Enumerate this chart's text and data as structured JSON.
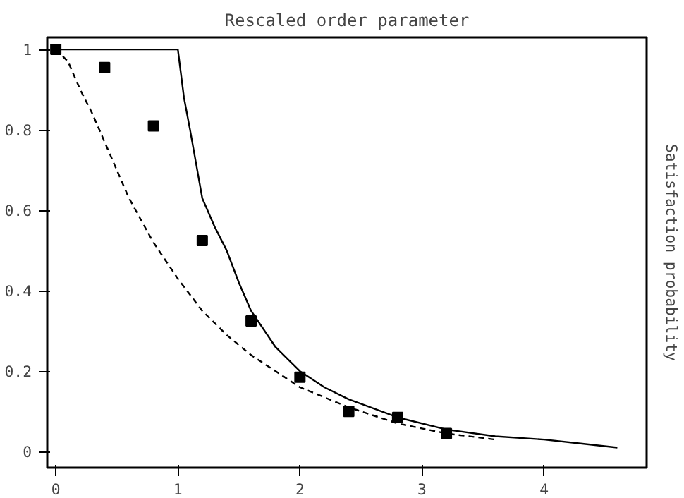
{
  "chart_data": {
    "type": "line",
    "title": "Rescaled order parameter",
    "ylabel": "Satisfaction probability",
    "xlim": [
      -0.07,
      4.84
    ],
    "ylim": [
      -0.04,
      1.03
    ],
    "xticks": [
      0,
      1,
      2,
      3,
      4
    ],
    "yticks": [
      0,
      0.2,
      0.4,
      0.6,
      0.8,
      1
    ],
    "grid": false,
    "series": [
      {
        "type": "line",
        "line_style": "solid",
        "color": "#000000",
        "x": [
          0,
          1,
          1.05,
          1.1,
          1.2,
          1.3,
          1.4,
          1.5,
          1.6,
          1.8,
          2.0,
          2.2,
          2.4,
          2.8,
          3.2,
          3.6,
          4.0,
          4.3,
          4.6
        ],
        "values": [
          1,
          1,
          0.88,
          0.8,
          0.63,
          0.56,
          0.5,
          0.42,
          0.35,
          0.26,
          0.2,
          0.16,
          0.13,
          0.085,
          0.055,
          0.038,
          0.03,
          0.02,
          0.01
        ]
      },
      {
        "type": "line",
        "line_style": "dashed",
        "color": "#000000",
        "x": [
          0,
          0.1,
          0.2,
          0.3,
          0.4,
          0.6,
          0.8,
          1.0,
          1.2,
          1.4,
          1.6,
          2.0,
          2.4,
          2.8,
          3.2,
          3.6
        ],
        "values": [
          1,
          0.97,
          0.9,
          0.84,
          0.77,
          0.63,
          0.52,
          0.43,
          0.35,
          0.29,
          0.24,
          0.16,
          0.11,
          0.07,
          0.045,
          0.03
        ]
      },
      {
        "type": "scatter",
        "marker": "square",
        "color": "#000000",
        "x": [
          0,
          0.4,
          0.8,
          1.2,
          1.6,
          2.0,
          2.4,
          2.8,
          3.2
        ],
        "values": [
          1,
          0.955,
          0.81,
          0.525,
          0.325,
          0.185,
          0.1,
          0.085,
          0.045
        ]
      }
    ]
  }
}
